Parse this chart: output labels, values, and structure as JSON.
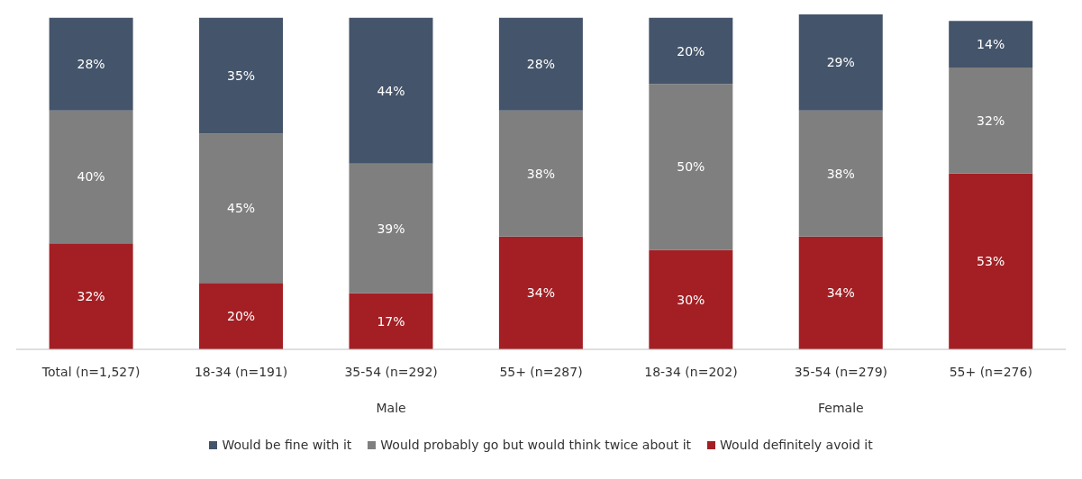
{
  "chart_data": {
    "type": "bar",
    "stacked": true,
    "legend": "bottom",
    "categories": [
      "Total (n=1,527)",
      "18-34 (n=191)",
      "35-54 (n=292)",
      "55+ (n=287)",
      "18-34 (n=202)",
      "35-54 (n=279)",
      "55+ (n=276)"
    ],
    "annotations": [
      "Male",
      "Female"
    ],
    "series": [
      {
        "name": "Would definitely avoid it",
        "color": "#a31f24",
        "values": [
          32,
          20,
          17,
          34,
          30,
          34,
          53
        ],
        "value_labels": [
          "32%",
          "20%",
          "17%",
          "34%",
          "30%",
          "34%",
          "53%"
        ]
      },
      {
        "name": "Would probably go but would think twice about it",
        "color": "#7f7f7f",
        "values": [
          40,
          45,
          39,
          38,
          50,
          38,
          32
        ],
        "value_labels": [
          "40%",
          "45%",
          "39%",
          "38%",
          "50%",
          "38%",
          "32%"
        ]
      },
      {
        "name": "Would be fine with it",
        "color": "#44546a",
        "values": [
          28,
          35,
          44,
          28,
          20,
          29,
          14
        ],
        "value_labels": [
          "28%",
          "35%",
          "44%",
          "28%",
          "20%",
          "29%",
          "14%"
        ]
      }
    ]
  }
}
